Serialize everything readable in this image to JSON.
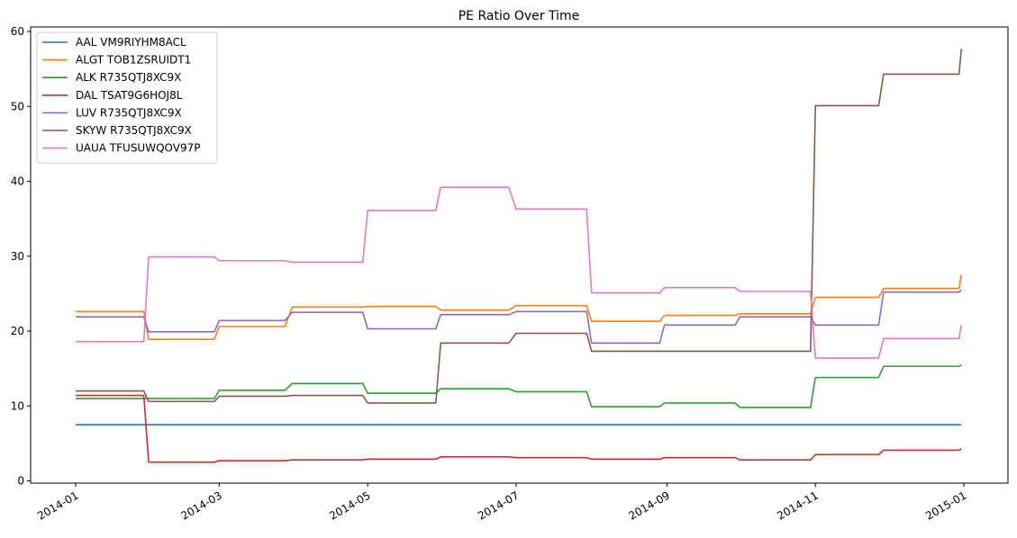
{
  "chart_data": {
    "type": "line",
    "title": "PE Ratio Over Time",
    "xlabel": "",
    "ylabel": "",
    "x_axis": {
      "type": "date",
      "range": [
        "2014-01-01",
        "2015-01-01"
      ],
      "ticks": [
        "2014-01-01",
        "2014-03-01",
        "2014-05-01",
        "2014-07-01",
        "2014-09-01",
        "2014-11-01",
        "2015-01-01"
      ],
      "tick_labels": [
        "2014-01",
        "2014-03",
        "2014-05",
        "2014-07",
        "2014-09",
        "2014-11",
        "2015-01"
      ]
    },
    "y_axis": {
      "range": [
        0,
        60
      ],
      "ticks": [
        0,
        10,
        20,
        30,
        40,
        50,
        60
      ],
      "tick_labels": [
        "0",
        "10",
        "20",
        "30",
        "40",
        "50",
        "60"
      ]
    },
    "grid": false,
    "legend_position": "top-left",
    "series": [
      {
        "name": "AAL VM9RIYHM8ACL",
        "color": "#1f77b4",
        "x": [
          "2014-01-01",
          "2014-12-31"
        ],
        "y": [
          7.5,
          7.5
        ]
      },
      {
        "name": "ALGT TOB1ZSRUIDT1",
        "color": "#ff7f0e",
        "x": [
          "2014-01-01",
          "2014-01-29",
          "2014-01-31",
          "2014-02-27",
          "2014-03-01",
          "2014-03-28",
          "2014-03-31",
          "2014-04-29",
          "2014-05-01",
          "2014-05-29",
          "2014-05-31",
          "2014-06-28",
          "2014-07-01",
          "2014-07-30",
          "2014-08-01",
          "2014-08-29",
          "2014-08-31",
          "2014-09-29",
          "2014-10-01",
          "2014-10-30",
          "2014-11-01",
          "2014-11-27",
          "2014-11-29",
          "2014-12-30",
          "2014-12-31"
        ],
        "y": [
          22.6,
          22.6,
          18.9,
          18.9,
          20.6,
          20.6,
          23.2,
          23.2,
          23.3,
          23.3,
          22.8,
          22.8,
          23.4,
          23.4,
          21.3,
          21.3,
          22.1,
          22.1,
          22.3,
          22.3,
          24.5,
          24.5,
          25.7,
          25.7,
          27.5
        ]
      },
      {
        "name": "ALK R735QTJ8XC9X",
        "color": "#2ca02c",
        "x": [
          "2014-01-01",
          "2014-01-29",
          "2014-01-31",
          "2014-02-27",
          "2014-03-01",
          "2014-03-28",
          "2014-03-31",
          "2014-04-29",
          "2014-05-01",
          "2014-05-29",
          "2014-05-31",
          "2014-06-28",
          "2014-07-01",
          "2014-07-30",
          "2014-08-01",
          "2014-08-29",
          "2014-08-31",
          "2014-09-29",
          "2014-10-01",
          "2014-10-30",
          "2014-11-01",
          "2014-11-27",
          "2014-11-29",
          "2014-12-30",
          "2014-12-31"
        ],
        "y": [
          11.0,
          11.0,
          11.0,
          11.0,
          12.1,
          12.1,
          13.0,
          13.0,
          11.7,
          11.7,
          12.3,
          12.3,
          11.9,
          11.9,
          9.9,
          9.9,
          10.4,
          10.4,
          9.8,
          9.8,
          13.8,
          13.8,
          15.3,
          15.3,
          15.5
        ]
      },
      {
        "name": "DAL TSAT9G6HOJ8L",
        "color": "#d62728",
        "x": [
          "2014-01-01",
          "2014-01-29",
          "2014-01-31",
          "2014-02-27",
          "2014-03-01",
          "2014-03-28",
          "2014-03-31",
          "2014-04-29",
          "2014-05-01",
          "2014-05-29",
          "2014-05-31",
          "2014-06-28",
          "2014-07-01",
          "2014-07-30",
          "2014-08-01",
          "2014-08-29",
          "2014-08-31",
          "2014-09-29",
          "2014-10-01",
          "2014-10-30",
          "2014-11-01",
          "2014-11-27",
          "2014-11-29",
          "2014-12-30",
          "2014-12-31"
        ],
        "y": [
          11.4,
          11.4,
          2.5,
          2.5,
          2.7,
          2.7,
          2.8,
          2.8,
          2.9,
          2.9,
          3.2,
          3.2,
          3.1,
          3.1,
          2.9,
          2.9,
          3.1,
          3.1,
          2.8,
          2.8,
          3.5,
          3.5,
          4.1,
          4.1,
          4.3
        ]
      },
      {
        "name": "LUV R735QTJ8XC9X",
        "color": "#9467bd",
        "x": [
          "2014-01-01",
          "2014-01-29",
          "2014-01-31",
          "2014-02-27",
          "2014-03-01",
          "2014-03-28",
          "2014-03-31",
          "2014-04-29",
          "2014-05-01",
          "2014-05-29",
          "2014-05-31",
          "2014-06-28",
          "2014-07-01",
          "2014-07-30",
          "2014-08-01",
          "2014-08-29",
          "2014-08-31",
          "2014-09-29",
          "2014-10-01",
          "2014-10-30",
          "2014-11-01",
          "2014-11-27",
          "2014-11-29",
          "2014-12-30",
          "2014-12-31"
        ],
        "y": [
          21.9,
          21.9,
          19.9,
          19.9,
          21.4,
          21.4,
          22.5,
          22.5,
          20.3,
          20.3,
          22.2,
          22.2,
          22.6,
          22.6,
          18.4,
          18.4,
          20.8,
          20.8,
          21.9,
          21.9,
          20.8,
          20.8,
          25.2,
          25.2,
          25.5
        ]
      },
      {
        "name": "SKYW R735QTJ8XC9X",
        "color": "#8c564b",
        "x": [
          "2014-01-01",
          "2014-01-29",
          "2014-01-31",
          "2014-02-27",
          "2014-03-01",
          "2014-03-28",
          "2014-03-31",
          "2014-04-29",
          "2014-05-01",
          "2014-05-29",
          "2014-05-31",
          "2014-06-28",
          "2014-07-01",
          "2014-07-30",
          "2014-08-01",
          "2014-08-29",
          "2014-08-31",
          "2014-09-29",
          "2014-10-01",
          "2014-10-30",
          "2014-11-01",
          "2014-11-27",
          "2014-11-29",
          "2014-12-30",
          "2014-12-31"
        ],
        "y": [
          12.0,
          12.0,
          10.6,
          10.6,
          11.3,
          11.3,
          11.4,
          11.4,
          10.4,
          10.4,
          18.4,
          18.4,
          19.7,
          19.7,
          17.3,
          17.3,
          17.3,
          17.3,
          17.3,
          17.3,
          50.1,
          50.1,
          54.3,
          54.3,
          57.7
        ]
      },
      {
        "name": "UAUA TFUSUWQOV97P",
        "color": "#e377c2",
        "x": [
          "2014-01-01",
          "2014-01-29",
          "2014-01-31",
          "2014-02-27",
          "2014-03-01",
          "2014-03-28",
          "2014-03-31",
          "2014-04-29",
          "2014-05-01",
          "2014-05-29",
          "2014-05-31",
          "2014-06-28",
          "2014-07-01",
          "2014-07-30",
          "2014-08-01",
          "2014-08-29",
          "2014-08-31",
          "2014-09-29",
          "2014-10-01",
          "2014-10-30",
          "2014-11-01",
          "2014-11-27",
          "2014-11-29",
          "2014-12-30",
          "2014-12-31"
        ],
        "y": [
          18.6,
          18.6,
          29.9,
          29.9,
          29.4,
          29.4,
          29.2,
          29.2,
          36.1,
          36.1,
          39.2,
          39.2,
          36.3,
          36.3,
          25.1,
          25.1,
          25.8,
          25.8,
          25.3,
          25.3,
          16.4,
          16.4,
          19.0,
          19.0,
          20.8
        ]
      }
    ]
  }
}
